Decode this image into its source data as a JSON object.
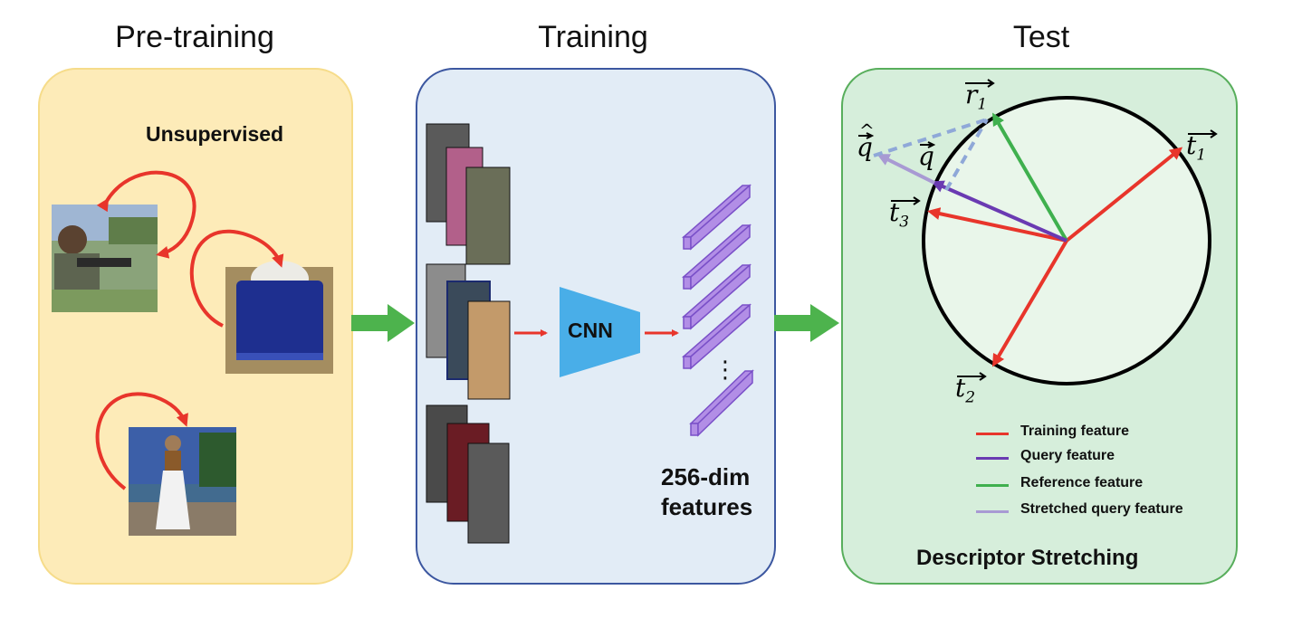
{
  "titles": {
    "pretraining": "Pre-training",
    "training": "Training",
    "test": "Test"
  },
  "pretraining": {
    "label": "Unsupervised"
  },
  "training": {
    "cnn_label": "CNN",
    "features_line1": "256-dim",
    "features_line2": "features",
    "ellipsis": "⋮"
  },
  "test": {
    "vectors": {
      "r1": "r",
      "r1_sub": "1",
      "t1": "t",
      "t1_sub": "1",
      "t2": "t",
      "t2_sub": "2",
      "t3": "t",
      "t3_sub": "3",
      "q": "q",
      "q_hat": "q"
    },
    "legend": [
      {
        "label": "Training feature",
        "color": "#e8352b"
      },
      {
        "label": "Query feature",
        "color": "#6a3ab2"
      },
      {
        "label": "Reference feature",
        "color": "#3fb04e"
      },
      {
        "label": "Stretched query feature",
        "color": "#a89ad3"
      }
    ],
    "caption": "Descriptor Stretching"
  },
  "colors": {
    "flow_arrow": "#4db34d",
    "red_arrow": "#e8352b",
    "cnn": "#49aee8",
    "feature_bar": "#b28ee6"
  }
}
